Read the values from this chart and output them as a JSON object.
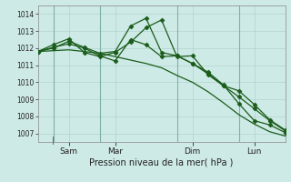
{
  "background_color": "#ceeae6",
  "grid_color": "#b0d4ce",
  "line_color": "#1a5c1a",
  "marker_color": "#1a5c1a",
  "xlabel": "Pression niveau de la mer( hPa )",
  "ylim": [
    1006.5,
    1014.5
  ],
  "yticks": [
    1007,
    1008,
    1009,
    1010,
    1011,
    1012,
    1013,
    1014
  ],
  "xlim": [
    0,
    32
  ],
  "xtick_labels": [
    "Sam",
    "Mar",
    "Dim",
    "Lun"
  ],
  "xtick_positions": [
    4,
    10,
    20,
    28
  ],
  "vline_positions": [
    2,
    8,
    18,
    26
  ],
  "series1_x": [
    0,
    2,
    4,
    6,
    8,
    10,
    12,
    14,
    16,
    18,
    20,
    22,
    24,
    26,
    28,
    30,
    32
  ],
  "series1_y": [
    1011.8,
    1011.85,
    1011.9,
    1011.8,
    1011.7,
    1011.5,
    1011.3,
    1011.1,
    1010.85,
    1010.4,
    1010.0,
    1009.45,
    1008.8,
    1008.1,
    1007.55,
    1007.1,
    1006.85
  ],
  "series2_x": [
    0,
    2,
    4,
    6,
    8,
    10,
    12,
    14,
    16,
    18,
    20,
    22,
    24,
    26,
    28,
    30,
    32
  ],
  "series2_y": [
    1011.8,
    1012.0,
    1012.4,
    1012.05,
    1011.7,
    1011.8,
    1013.3,
    1013.75,
    1011.75,
    1011.55,
    1011.1,
    1010.5,
    1009.8,
    1009.15,
    1008.45,
    1007.75,
    1007.15
  ],
  "series3_x": [
    0,
    2,
    4,
    6,
    8,
    10,
    12,
    14,
    16,
    18,
    20,
    22,
    24,
    26,
    28,
    30,
    32
  ],
  "series3_y": [
    1011.8,
    1012.05,
    1012.25,
    1012.0,
    1011.55,
    1011.25,
    1012.5,
    1012.2,
    1011.5,
    1011.55,
    1011.1,
    1010.6,
    1009.85,
    1008.75,
    1007.75,
    1007.5,
    1007.05
  ],
  "series4_x": [
    0,
    2,
    4,
    6,
    8,
    10,
    12,
    14,
    16,
    18,
    20,
    22,
    24,
    26,
    28,
    30,
    32
  ],
  "series4_y": [
    1011.8,
    1012.2,
    1012.55,
    1011.75,
    1011.5,
    1011.75,
    1012.35,
    1013.2,
    1013.65,
    1011.5,
    1011.55,
    1010.45,
    1009.8,
    1009.5,
    1008.7,
    1007.8,
    1007.2
  ],
  "marker_size": 2.5,
  "linewidth": 0.9,
  "ytick_fontsize": 5.5,
  "xtick_fontsize": 6.5,
  "xlabel_fontsize": 7
}
